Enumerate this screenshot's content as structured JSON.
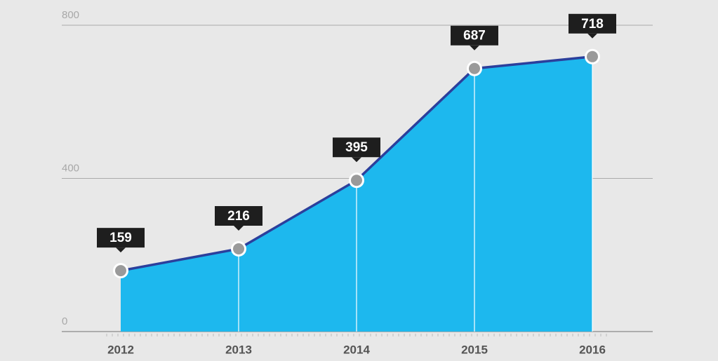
{
  "chart_data": {
    "type": "area",
    "categories": [
      "2012",
      "2013",
      "2014",
      "2015",
      "2016"
    ],
    "values": [
      159,
      216,
      395,
      687,
      718
    ],
    "color": "#1db8ee",
    "line_color": "#2b3f9c",
    "ylim": [
      0,
      800
    ],
    "yticks": [
      0,
      400,
      800
    ],
    "grid": true
  }
}
